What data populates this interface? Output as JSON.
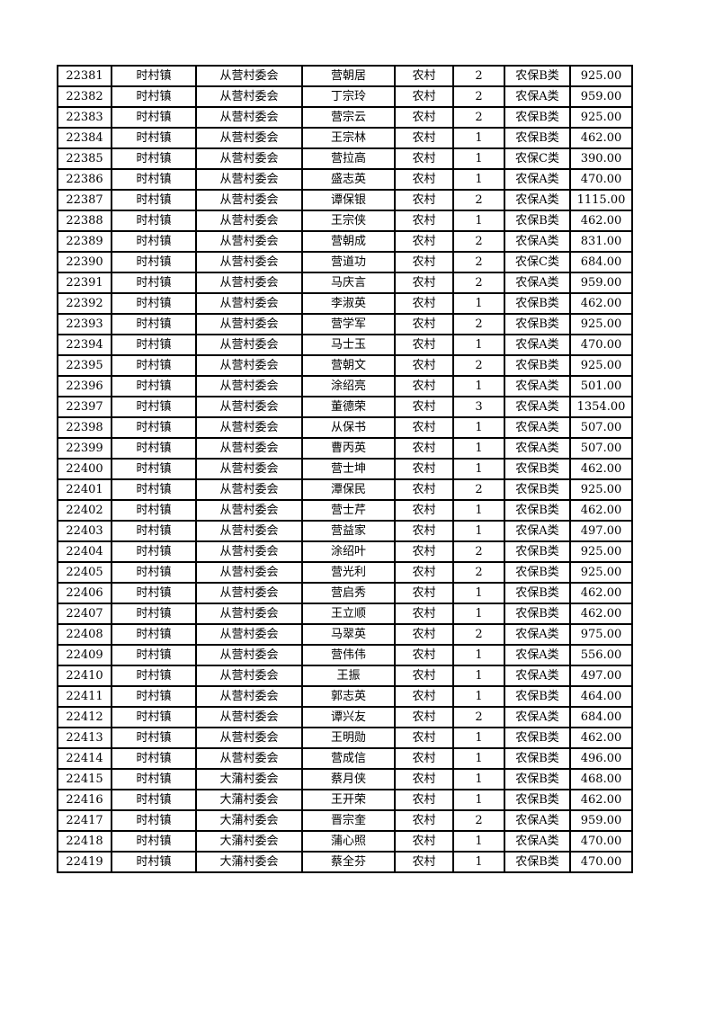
{
  "page": {
    "background_color": "#ffffff",
    "text_color": "#000000",
    "table_border_color": "#000000"
  },
  "table": {
    "columns": [
      "record-id",
      "town",
      "village-committee",
      "person-name",
      "residence-type",
      "person-count",
      "insurance-class",
      "amount"
    ],
    "rows": [
      [
        "22381",
        "时村镇",
        "从营村委会",
        "营朝居",
        "农村",
        "2",
        "农保B类",
        "925.00"
      ],
      [
        "22382",
        "时村镇",
        "从营村委会",
        "丁宗玲",
        "农村",
        "2",
        "农保A类",
        "959.00"
      ],
      [
        "22383",
        "时村镇",
        "从营村委会",
        "营宗云",
        "农村",
        "2",
        "农保B类",
        "925.00"
      ],
      [
        "22384",
        "时村镇",
        "从营村委会",
        "王宗林",
        "农村",
        "1",
        "农保B类",
        "462.00"
      ],
      [
        "22385",
        "时村镇",
        "从营村委会",
        "营拉高",
        "农村",
        "1",
        "农保C类",
        "390.00"
      ],
      [
        "22386",
        "时村镇",
        "从营村委会",
        "盛志英",
        "农村",
        "1",
        "农保A类",
        "470.00"
      ],
      [
        "22387",
        "时村镇",
        "从营村委会",
        "谭保银",
        "农村",
        "2",
        "农保A类",
        "1115.00"
      ],
      [
        "22388",
        "时村镇",
        "从营村委会",
        "王宗侠",
        "农村",
        "1",
        "农保B类",
        "462.00"
      ],
      [
        "22389",
        "时村镇",
        "从营村委会",
        "营朝成",
        "农村",
        "2",
        "农保A类",
        "831.00"
      ],
      [
        "22390",
        "时村镇",
        "从营村委会",
        "营道功",
        "农村",
        "2",
        "农保C类",
        "684.00"
      ],
      [
        "22391",
        "时村镇",
        "从营村委会",
        "马庆言",
        "农村",
        "2",
        "农保A类",
        "959.00"
      ],
      [
        "22392",
        "时村镇",
        "从营村委会",
        "李淑英",
        "农村",
        "1",
        "农保B类",
        "462.00"
      ],
      [
        "22393",
        "时村镇",
        "从营村委会",
        "营学军",
        "农村",
        "2",
        "农保B类",
        "925.00"
      ],
      [
        "22394",
        "时村镇",
        "从营村委会",
        "马士玉",
        "农村",
        "1",
        "农保A类",
        "470.00"
      ],
      [
        "22395",
        "时村镇",
        "从营村委会",
        "营朝文",
        "农村",
        "2",
        "农保B类",
        "925.00"
      ],
      [
        "22396",
        "时村镇",
        "从营村委会",
        "涂绍亮",
        "农村",
        "1",
        "农保A类",
        "501.00"
      ],
      [
        "22397",
        "时村镇",
        "从营村委会",
        "董德荣",
        "农村",
        "3",
        "农保A类",
        "1354.00"
      ],
      [
        "22398",
        "时村镇",
        "从营村委会",
        "从保书",
        "农村",
        "1",
        "农保A类",
        "507.00"
      ],
      [
        "22399",
        "时村镇",
        "从营村委会",
        "曹丙英",
        "农村",
        "1",
        "农保A类",
        "507.00"
      ],
      [
        "22400",
        "时村镇",
        "从营村委会",
        "营士坤",
        "农村",
        "1",
        "农保B类",
        "462.00"
      ],
      [
        "22401",
        "时村镇",
        "从营村委会",
        "潭保民",
        "农村",
        "2",
        "农保B类",
        "925.00"
      ],
      [
        "22402",
        "时村镇",
        "从营村委会",
        "营士芹",
        "农村",
        "1",
        "农保B类",
        "462.00"
      ],
      [
        "22403",
        "时村镇",
        "从营村委会",
        "营益家",
        "农村",
        "1",
        "农保A类",
        "497.00"
      ],
      [
        "22404",
        "时村镇",
        "从营村委会",
        "涂绍叶",
        "农村",
        "2",
        "农保B类",
        "925.00"
      ],
      [
        "22405",
        "时村镇",
        "从营村委会",
        "营光利",
        "农村",
        "2",
        "农保B类",
        "925.00"
      ],
      [
        "22406",
        "时村镇",
        "从营村委会",
        "营启秀",
        "农村",
        "1",
        "农保B类",
        "462.00"
      ],
      [
        "22407",
        "时村镇",
        "从营村委会",
        "王立顺",
        "农村",
        "1",
        "农保B类",
        "462.00"
      ],
      [
        "22408",
        "时村镇",
        "从营村委会",
        "马翠英",
        "农村",
        "2",
        "农保A类",
        "975.00"
      ],
      [
        "22409",
        "时村镇",
        "从营村委会",
        "营伟伟",
        "农村",
        "1",
        "农保A类",
        "556.00"
      ],
      [
        "22410",
        "时村镇",
        "从营村委会",
        "王振",
        "农村",
        "1",
        "农保A类",
        "497.00"
      ],
      [
        "22411",
        "时村镇",
        "从营村委会",
        "郭志英",
        "农村",
        "1",
        "农保B类",
        "464.00"
      ],
      [
        "22412",
        "时村镇",
        "从营村委会",
        "谭兴友",
        "农村",
        "2",
        "农保A类",
        "684.00"
      ],
      [
        "22413",
        "时村镇",
        "从营村委会",
        "王明勋",
        "农村",
        "1",
        "农保B类",
        "462.00"
      ],
      [
        "22414",
        "时村镇",
        "从营村委会",
        "营成信",
        "农村",
        "1",
        "农保B类",
        "496.00"
      ],
      [
        "22415",
        "时村镇",
        "大蒲村委会",
        "蔡月侠",
        "农村",
        "1",
        "农保B类",
        "468.00"
      ],
      [
        "22416",
        "时村镇",
        "大蒲村委会",
        "王开荣",
        "农村",
        "1",
        "农保B类",
        "462.00"
      ],
      [
        "22417",
        "时村镇",
        "大蒲村委会",
        "晋宗奎",
        "农村",
        "2",
        "农保A类",
        "959.00"
      ],
      [
        "22418",
        "时村镇",
        "大蒲村委会",
        "蒲心照",
        "农村",
        "1",
        "农保A类",
        "470.00"
      ],
      [
        "22419",
        "时村镇",
        "大蒲村委会",
        "蔡全芬",
        "农村",
        "1",
        "农保B类",
        "470.00"
      ]
    ]
  }
}
